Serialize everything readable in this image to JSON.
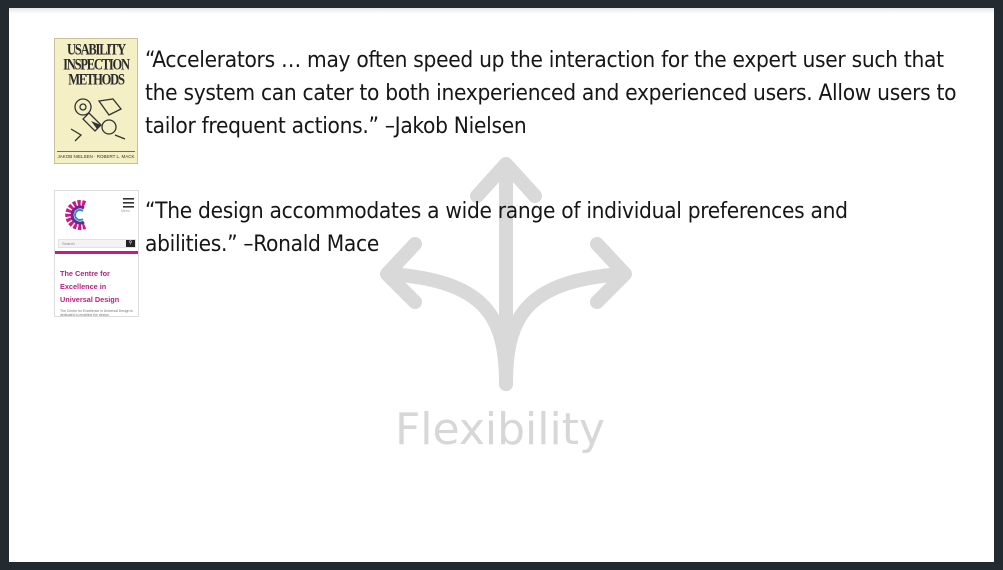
{
  "slide": {
    "watermark": "Flexibility",
    "icon": "split-arrows-icon"
  },
  "quotes": [
    {
      "text": "“Accelerators … may often speed up the interaction for the expert user such that the system can cater to both inexperienced and experienced users. Allow users to tailor frequent actions.” –Jakob Nielsen"
    },
    {
      "text": "“The design accommodates a wide range of individual preferences and abilities.” –Ronald Mace"
    }
  ],
  "book_cover": {
    "title_line1": "USABILITY",
    "title_line2": "INSPECTION",
    "title_line3": "METHODS",
    "authors": "JAKOB NIELSEN · ROBERT L. MACK"
  },
  "website_thumbnail": {
    "menu_label": "Menu",
    "search_placeholder": "Search",
    "heading_line1": "The Centre for",
    "heading_line2": "Excellence in",
    "heading_line3": "Universal Design",
    "description": "The Centre for Excellence in Universal Design is dedicated to enabling the design"
  },
  "colors": {
    "frame": "#232b30",
    "watermark": "#d7d7d7",
    "accent_magenta": "#b4237d"
  }
}
